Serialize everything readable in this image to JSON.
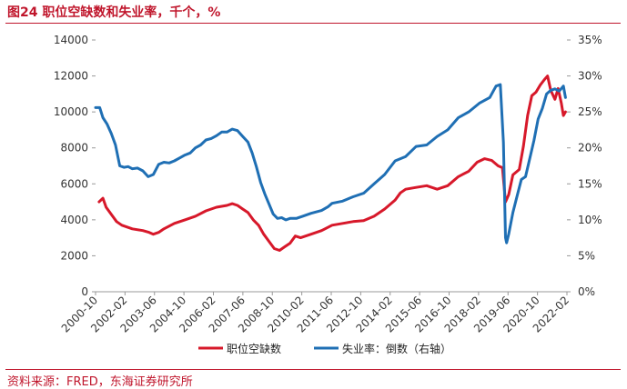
{
  "title": "图24  职位空缺数和失业率，千个，%",
  "source": "资料来源：FRED，东海证券研究所",
  "colors": {
    "openings": "#d7182a",
    "unemployment": "#1f6fb4",
    "accent": "#c0162c"
  },
  "chart_data": {
    "type": "line",
    "y_left": {
      "min": 0,
      "max": 14000,
      "ticks": [
        "0",
        "2000",
        "4000",
        "6000",
        "8000",
        "10000",
        "12000",
        "14000"
      ]
    },
    "y_right": {
      "min": 0,
      "max": 35,
      "inverted_series": "unemployment",
      "ticks": [
        "0%",
        "5%",
        "10%",
        "15%",
        "20%",
        "25%",
        "30%",
        "35%"
      ]
    },
    "x_ticks": [
      "2000-10",
      "2002-02",
      "2003-06",
      "2004-10",
      "2006-02",
      "2007-06",
      "2008-10",
      "2010-02",
      "2011-06",
      "2012-10",
      "2014-02",
      "2015-06",
      "2016-10",
      "2018-02",
      "2019-06",
      "2020-10",
      "2022-02"
    ],
    "x_range": [
      2000.75,
      2023.17
    ],
    "legend": {
      "placement": "bottom",
      "items": [
        "职位空缺数",
        "失业率：倒数（右轴）"
      ]
    },
    "series": [
      {
        "name": "职位空缺数",
        "axis": "left",
        "x": [
          2000.92,
          2001.1,
          2001.25,
          2001.5,
          2001.75,
          2002.0,
          2002.5,
          2003.0,
          2003.3,
          2003.5,
          2003.75,
          2004.0,
          2004.5,
          2005.0,
          2005.5,
          2006.0,
          2006.5,
          2007.0,
          2007.25,
          2007.5,
          2007.75,
          2008.0,
          2008.25,
          2008.5,
          2008.75,
          2009.0,
          2009.25,
          2009.5,
          2009.75,
          2010.0,
          2010.25,
          2010.5,
          2011.0,
          2011.5,
          2012.0,
          2012.5,
          2013.0,
          2013.5,
          2014.0,
          2014.5,
          2015.0,
          2015.25,
          2015.5,
          2016.0,
          2016.5,
          2017.0,
          2017.5,
          2018.0,
          2018.5,
          2018.9,
          2019.25,
          2019.6,
          2019.9,
          2020.1,
          2020.25,
          2020.4,
          2020.6,
          2020.9,
          2021.1,
          2021.3,
          2021.5,
          2021.7,
          2021.9,
          2022.1,
          2022.25,
          2022.4,
          2022.6,
          2022.75,
          2022.9,
          2023.0,
          2023.1
        ],
        "y": [
          5000,
          5200,
          4700,
          4300,
          3900,
          3700,
          3500,
          3400,
          3300,
          3200,
          3300,
          3500,
          3800,
          4000,
          4200,
          4500,
          4700,
          4800,
          4900,
          4800,
          4600,
          4400,
          4000,
          3700,
          3200,
          2800,
          2400,
          2300,
          2500,
          2700,
          3100,
          3000,
          3200,
          3400,
          3700,
          3800,
          3900,
          3950,
          4200,
          4600,
          5100,
          5500,
          5700,
          5800,
          5900,
          5700,
          5900,
          6400,
          6700,
          7200,
          7400,
          7300,
          7000,
          6900,
          5000,
          5400,
          6500,
          6800,
          8100,
          9800,
          10900,
          11100,
          11500,
          11800,
          12000,
          11200,
          10700,
          11300,
          10500,
          9800,
          10000
        ]
      },
      {
        "name": "失业率：倒数（右轴）",
        "axis": "right",
        "x": [
          2000.75,
          2000.95,
          2001.1,
          2001.3,
          2001.5,
          2001.7,
          2001.9,
          2002.1,
          2002.3,
          2002.5,
          2002.75,
          2003.0,
          2003.25,
          2003.5,
          2003.75,
          2004.0,
          2004.25,
          2004.5,
          2004.75,
          2005.0,
          2005.25,
          2005.5,
          2005.75,
          2006.0,
          2006.25,
          2006.5,
          2006.75,
          2007.0,
          2007.25,
          2007.5,
          2007.75,
          2008.0,
          2008.2,
          2008.4,
          2008.6,
          2008.8,
          2009.0,
          2009.2,
          2009.4,
          2009.6,
          2009.8,
          2010.0,
          2010.3,
          2010.6,
          2011.0,
          2011.5,
          2011.8,
          2012.0,
          2012.5,
          2013.0,
          2013.5,
          2014.0,
          2014.5,
          2015.0,
          2015.5,
          2016.0,
          2016.5,
          2017.0,
          2017.5,
          2018.0,
          2018.5,
          2019.0,
          2019.5,
          2019.8,
          2020.0,
          2020.15,
          2020.25,
          2020.3,
          2020.4,
          2020.6,
          2020.8,
          2021.0,
          2021.2,
          2021.4,
          2021.6,
          2021.8,
          2022.0,
          2022.2,
          2022.4,
          2022.6,
          2022.8,
          2023.0,
          2023.1
        ],
        "y": [
          25.6,
          25.6,
          24.2,
          23.3,
          22.0,
          20.4,
          17.5,
          17.3,
          17.4,
          17.1,
          17.2,
          16.8,
          16.0,
          16.3,
          17.7,
          18.0,
          17.9,
          18.2,
          18.6,
          19.0,
          19.3,
          20.0,
          20.4,
          21.1,
          21.3,
          21.7,
          22.2,
          22.2,
          22.6,
          22.4,
          21.6,
          20.8,
          19.3,
          17.4,
          15.2,
          13.6,
          12.2,
          10.8,
          10.2,
          10.3,
          10.0,
          10.2,
          10.2,
          10.5,
          10.9,
          11.3,
          11.8,
          12.3,
          12.6,
          13.2,
          13.7,
          15.0,
          16.3,
          18.2,
          18.8,
          20.2,
          20.4,
          21.6,
          22.5,
          24.2,
          25.0,
          26.2,
          27.0,
          28.6,
          28.8,
          20.8,
          7.5,
          6.8,
          8.0,
          11.0,
          13.3,
          15.6,
          16.0,
          18.5,
          21.0,
          24.0,
          25.5,
          27.5,
          28.0,
          28.2,
          27.9,
          28.6,
          27.0
        ]
      }
    ]
  }
}
